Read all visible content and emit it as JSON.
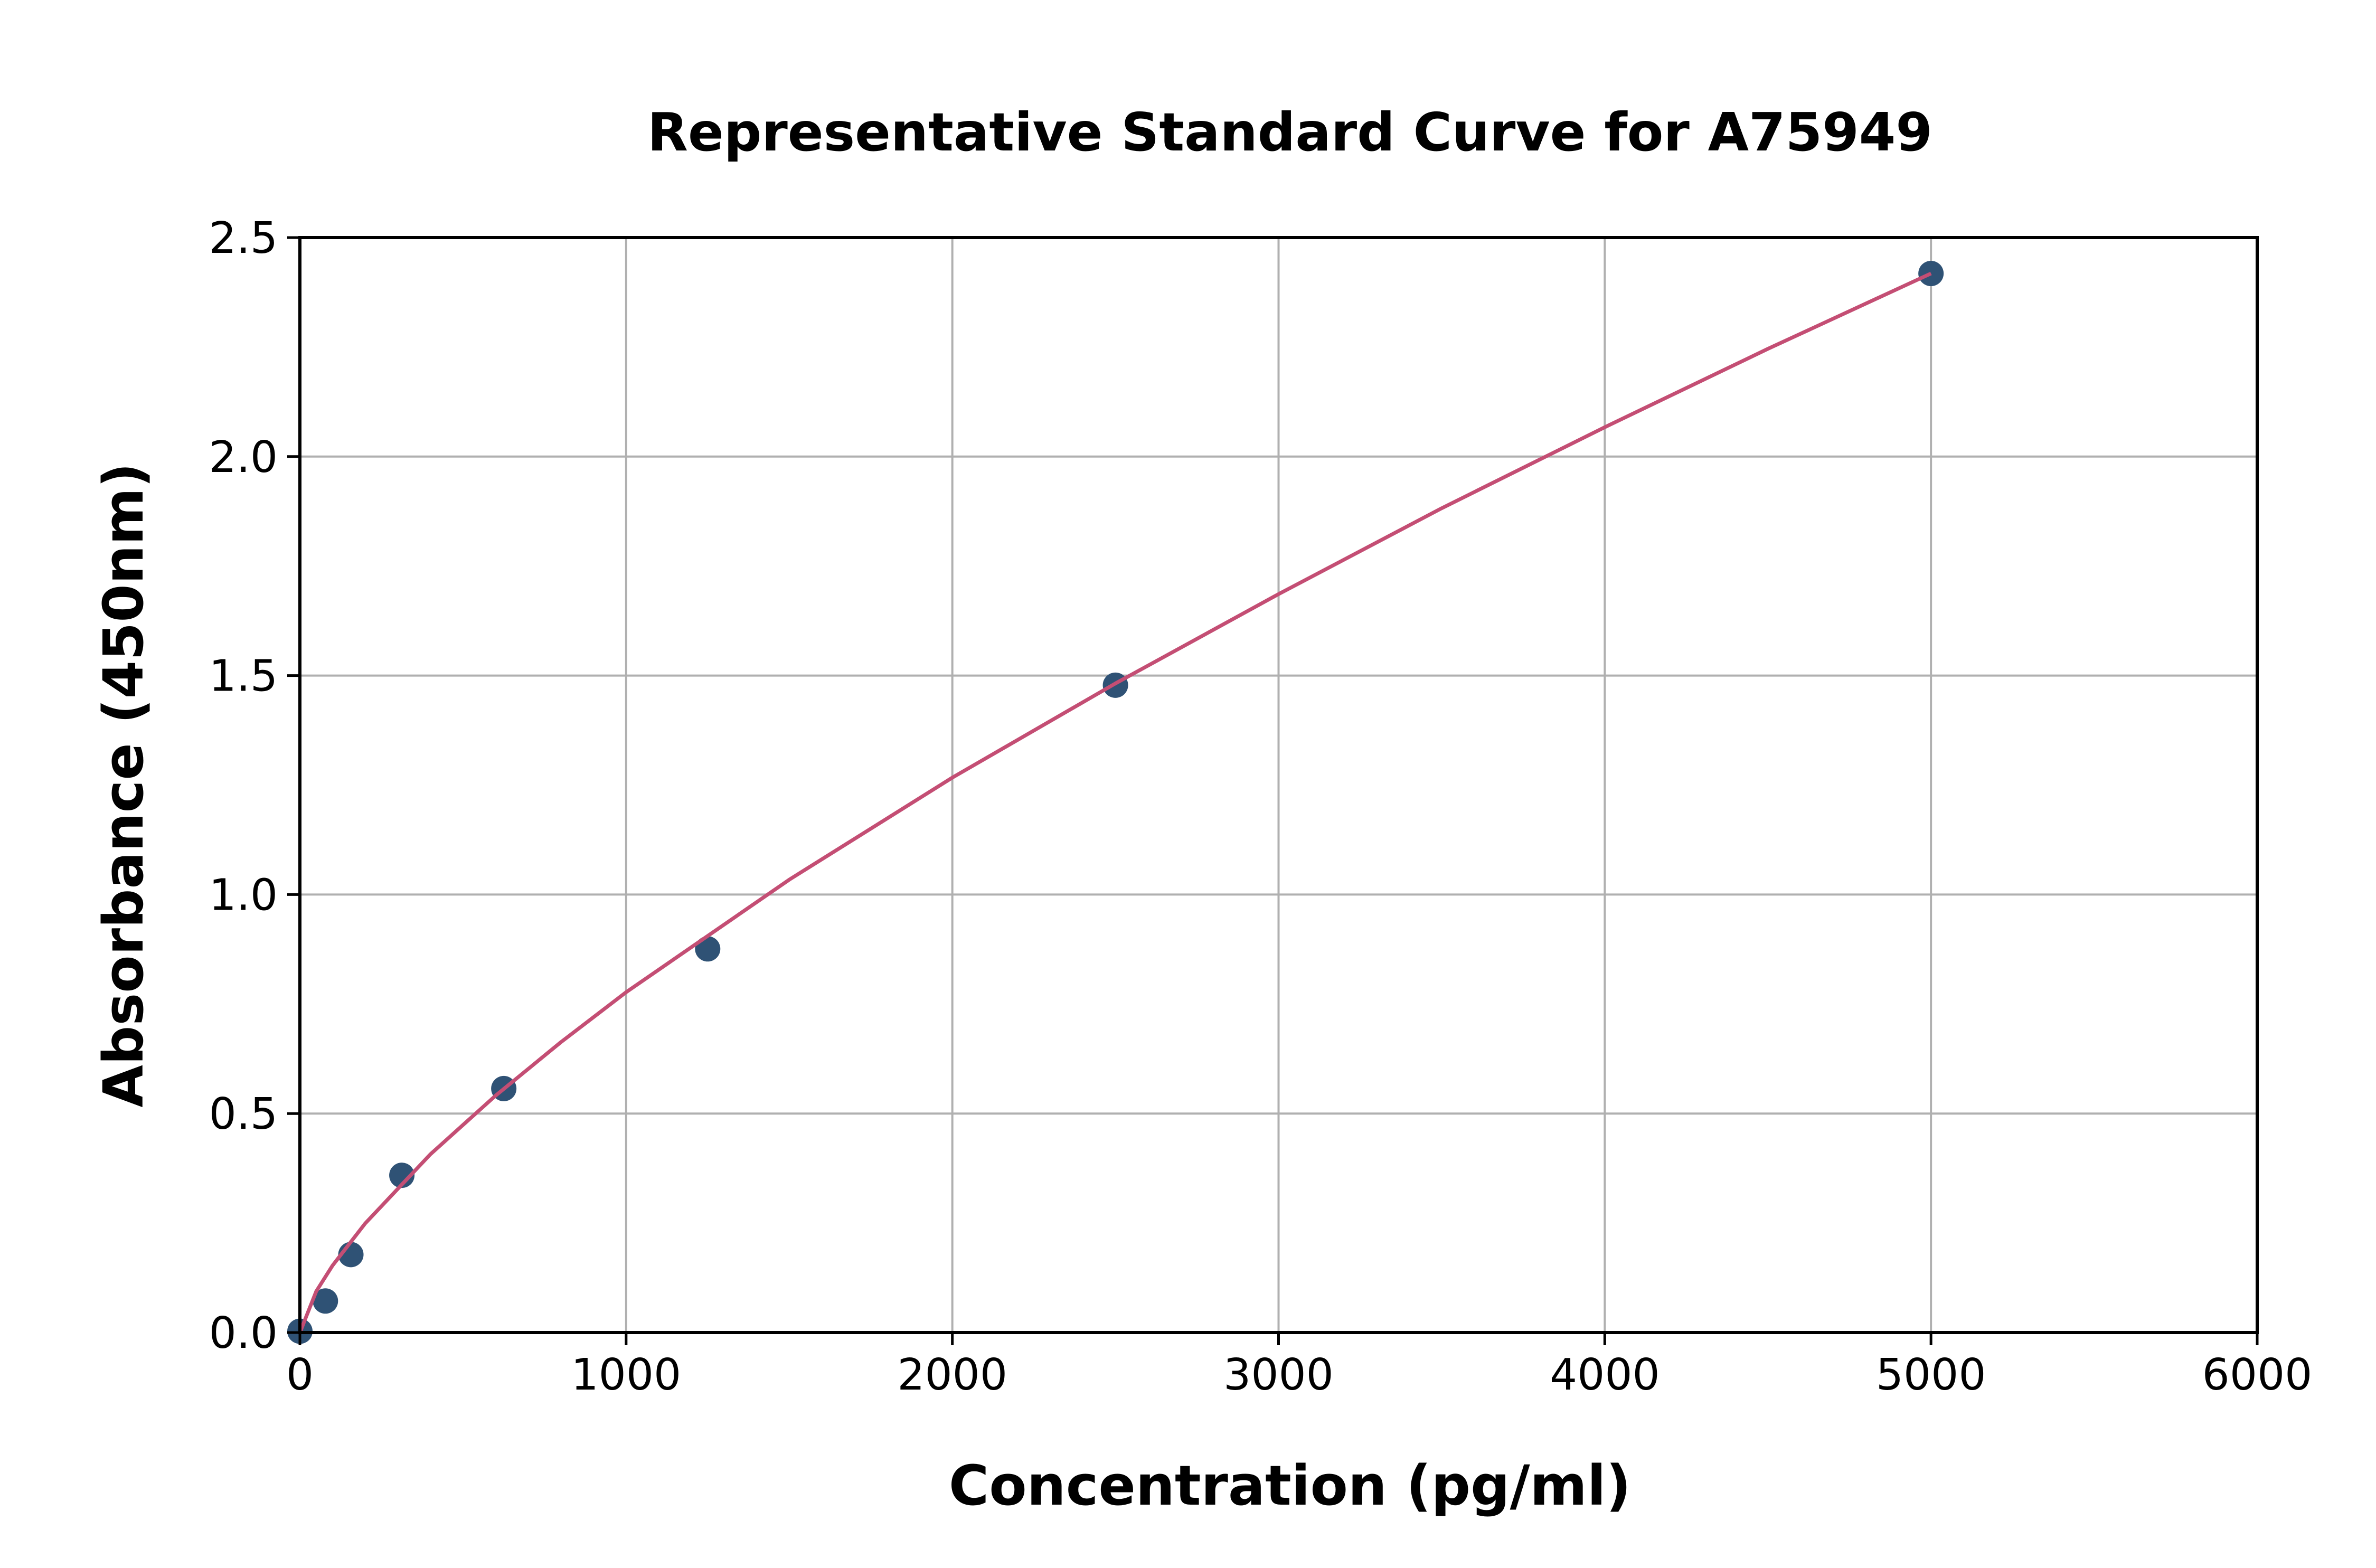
{
  "chart_data": {
    "type": "scatter",
    "title": "Representative Standard Curve for A75949",
    "xlabel": "Concentration (pg/ml)",
    "ylabel": "Absorbance (450nm)",
    "xlim": [
      0,
      6000
    ],
    "ylim": [
      0,
      2.5
    ],
    "xticks": [
      "0",
      "1000",
      "2000",
      "3000",
      "4000",
      "5000",
      "6000"
    ],
    "yticks": [
      "0.0",
      "0.5",
      "1.0",
      "1.5",
      "2.0",
      "2.5"
    ],
    "grid": true,
    "points": {
      "x": [
        0,
        78.125,
        156.25,
        312.5,
        625,
        1250,
        2500,
        5000
      ],
      "y": [
        0.003,
        0.072,
        0.178,
        0.359,
        0.557,
        0.876,
        1.478,
        2.418
      ]
    },
    "fit_curve": {
      "x": [
        0,
        50,
        100,
        200,
        400,
        600,
        800,
        1000,
        1500,
        2000,
        2500,
        3000,
        3500,
        4000,
        4500,
        5000
      ],
      "y": [
        0,
        0.094,
        0.153,
        0.249,
        0.407,
        0.541,
        0.663,
        0.777,
        1.034,
        1.267,
        1.482,
        1.686,
        1.882,
        2.067,
        2.246,
        2.418
      ]
    },
    "colors": {
      "points": "#2f5275",
      "curve": "#c44e74",
      "grid": "#b0b0b0"
    }
  }
}
